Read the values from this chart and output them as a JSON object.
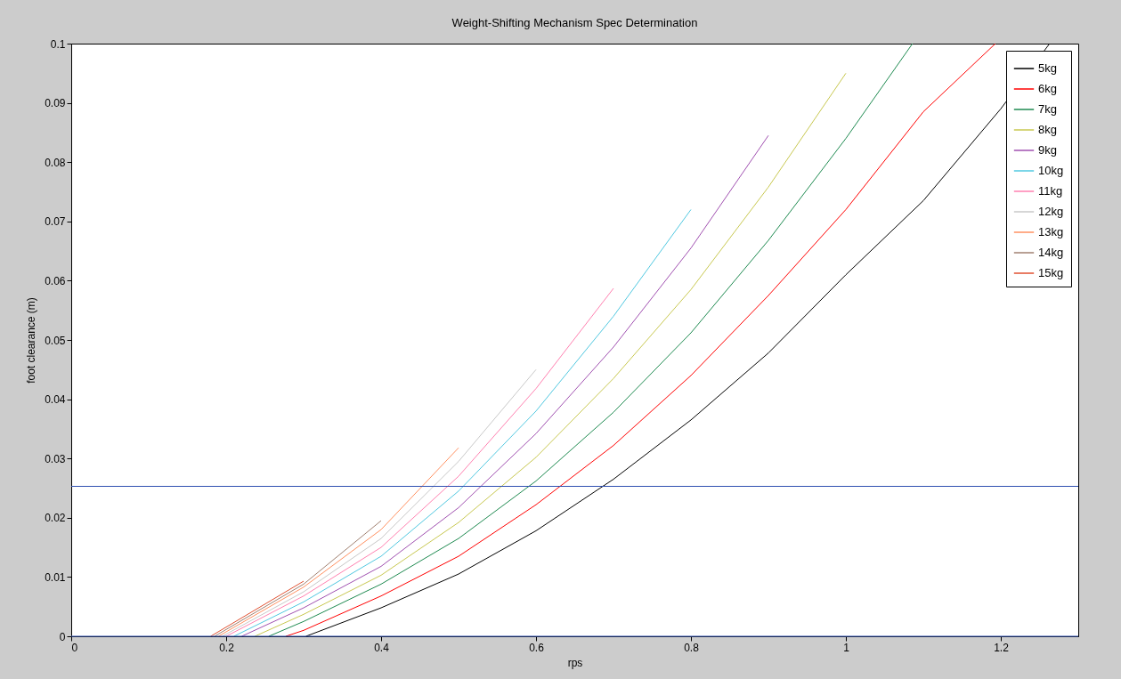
{
  "chart_data": {
    "type": "line",
    "title": "Weight-Shifting Mechanism Spec Determination",
    "xlabel": "rps",
    "ylabel": "foot clearance (m)",
    "xlim": [
      0,
      1.3
    ],
    "xticks": [
      0,
      0.2,
      0.4,
      0.6,
      0.8,
      1,
      1.2
    ],
    "ylim": [
      0,
      0.1
    ],
    "yticks": [
      0,
      0.01,
      0.02,
      0.03,
      0.04,
      0.05,
      0.06,
      0.07,
      0.08,
      0.09,
      0.1
    ],
    "grid": false,
    "legend": "top right",
    "marker": "none",
    "line_style": "solid",
    "series": [
      {
        "name": "5kg",
        "color": "#000000",
        "x": [
          0.303,
          0.4,
          0.5,
          0.6,
          0.7,
          0.8,
          0.9,
          1,
          1.1,
          1.2,
          1.263
        ],
        "values": [
          0,
          0.0048,
          0.0105,
          0.0178,
          0.0265,
          0.0365,
          0.0478,
          0.061,
          0.0735,
          0.089,
          0.1
        ]
      },
      {
        "name": "6kg",
        "color": "#ff0000",
        "x": [
          0.277,
          0.3,
          0.4,
          0.5,
          0.6,
          0.7,
          0.8,
          0.9,
          1,
          1.1,
          1.193
        ],
        "values": [
          0,
          0.001,
          0.0068,
          0.0135,
          0.0222,
          0.0322,
          0.044,
          0.0575,
          0.072,
          0.0885,
          0.1
        ]
      },
      {
        "name": "7kg",
        "color": "#1e8a50",
        "x": [
          0.255,
          0.3,
          0.4,
          0.5,
          0.6,
          0.7,
          0.8,
          0.9,
          1,
          1.086
        ],
        "values": [
          0,
          0.0025,
          0.0088,
          0.0165,
          0.0262,
          0.0378,
          0.0512,
          0.0668,
          0.084,
          0.1
        ]
      },
      {
        "name": "8kg",
        "color": "#c8c850",
        "x": [
          0.237,
          0.3,
          0.4,
          0.5,
          0.6,
          0.7,
          0.8,
          0.9,
          1
        ],
        "values": [
          0,
          0.0037,
          0.0103,
          0.0192,
          0.0302,
          0.0435,
          0.0585,
          0.0758,
          0.095
        ]
      },
      {
        "name": "9kg",
        "color": "#a050b0",
        "x": [
          0.22,
          0.3,
          0.4,
          0.5,
          0.6,
          0.7,
          0.8,
          0.9
        ],
        "values": [
          0,
          0.0048,
          0.0118,
          0.0217,
          0.0342,
          0.0488,
          0.0655,
          0.0845
        ]
      },
      {
        "name": "10kg",
        "color": "#50c8e0",
        "x": [
          0.21,
          0.3,
          0.4,
          0.5,
          0.6,
          0.7,
          0.8
        ],
        "values": [
          0,
          0.0058,
          0.0135,
          0.0245,
          0.038,
          0.054,
          0.072
        ]
      },
      {
        "name": "11kg",
        "color": "#ff80b0",
        "x": [
          0.2,
          0.3,
          0.4,
          0.5,
          0.6,
          0.7
        ],
        "values": [
          0,
          0.0068,
          0.015,
          0.027,
          0.0418,
          0.0587
        ]
      },
      {
        "name": "12kg",
        "color": "#c8c8c8",
        "x": [
          0.195,
          0.3,
          0.4,
          0.5,
          0.6
        ],
        "values": [
          0,
          0.0075,
          0.0165,
          0.0295,
          0.045
        ]
      },
      {
        "name": "13kg",
        "color": "#ff9060",
        "x": [
          0.19,
          0.3,
          0.4,
          0.5
        ],
        "values": [
          0,
          0.0083,
          0.018,
          0.0318
        ]
      },
      {
        "name": "14kg",
        "color": "#a08070",
        "x": [
          0.185,
          0.3,
          0.4
        ],
        "values": [
          0,
          0.0088,
          0.0195
        ]
      },
      {
        "name": "15kg",
        "color": "#e05030",
        "x": [
          0.18,
          0.3
        ],
        "values": [
          0,
          0.0093
        ]
      }
    ],
    "ref_lines": [
      {
        "axis": "y",
        "value": 0.0253,
        "color": "#3050b0"
      },
      {
        "axis": "y",
        "value": 0,
        "color": "#3050b0"
      }
    ]
  }
}
